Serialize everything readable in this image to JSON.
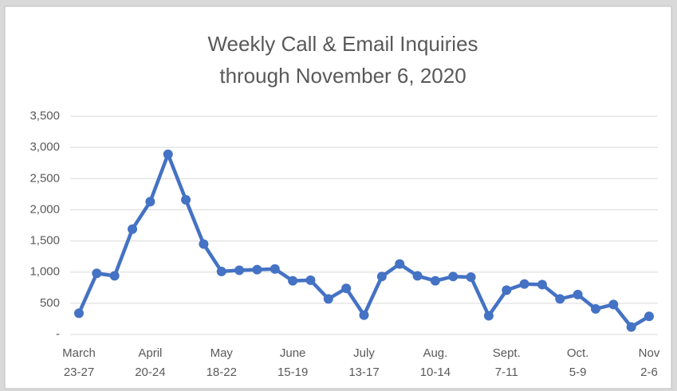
{
  "chart_data": {
    "type": "line",
    "title": [
      "Weekly Call & Email Inquiries",
      "through November 6, 2020"
    ],
    "categories": [
      [
        "March",
        "23-27"
      ],
      null,
      null,
      null,
      [
        "April",
        "20-24"
      ],
      null,
      null,
      null,
      [
        "May",
        "18-22"
      ],
      null,
      null,
      null,
      [
        "June",
        "15-19"
      ],
      null,
      null,
      null,
      [
        "July",
        "13-17"
      ],
      null,
      null,
      null,
      [
        "Aug.",
        "10-14"
      ],
      null,
      null,
      null,
      [
        "Sept.",
        "7-11"
      ],
      null,
      null,
      null,
      [
        "Oct.",
        "5-9"
      ],
      null,
      null,
      null,
      [
        "Nov",
        "2-6"
      ]
    ],
    "series": [
      {
        "name": "Inquiries",
        "color": "#4472c4",
        "values": [
          340,
          980,
          940,
          1690,
          2130,
          2890,
          2160,
          1450,
          1010,
          1030,
          1040,
          1050,
          860,
          870,
          570,
          740,
          310,
          930,
          1130,
          940,
          860,
          930,
          920,
          300,
          710,
          810,
          800,
          570,
          640,
          410,
          480,
          120,
          290
        ]
      }
    ],
    "ylim": [
      0,
      3500
    ],
    "yticks": [
      {
        "value": 0,
        "label": "-"
      },
      500,
      {
        "value": 1000,
        "label": "1,000"
      },
      {
        "value": 1500,
        "label": "1,500"
      },
      {
        "value": 2000,
        "label": "2,000"
      },
      {
        "value": 2500,
        "label": "2,500"
      },
      {
        "value": 3000,
        "label": "3,000"
      },
      {
        "value": 3500,
        "label": "3,500"
      }
    ],
    "grid": true
  }
}
